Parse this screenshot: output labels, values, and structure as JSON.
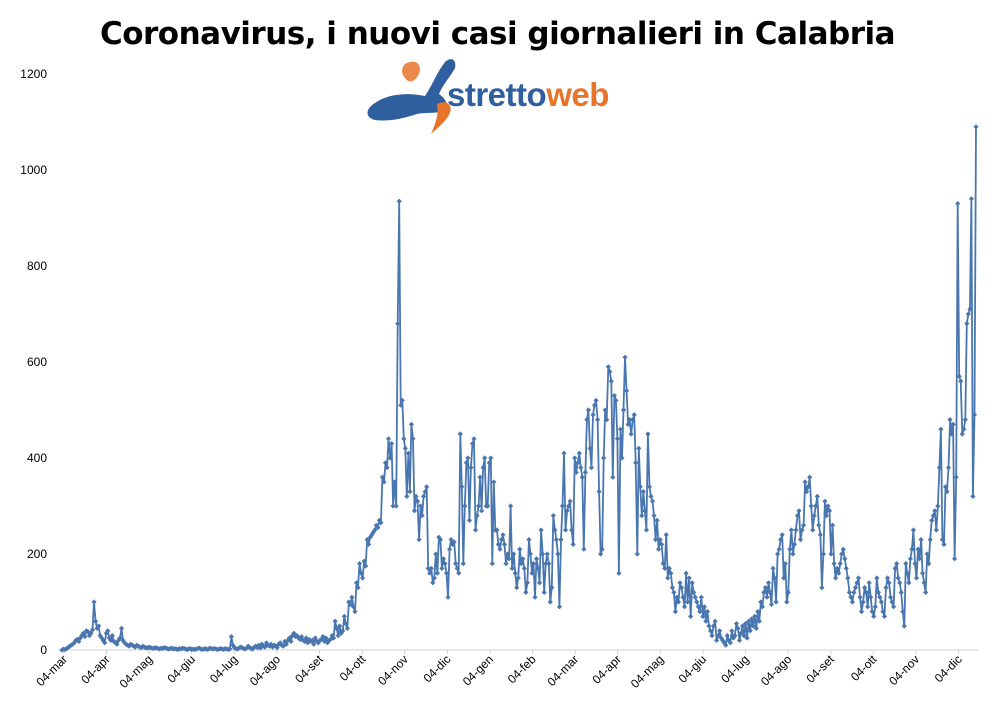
{
  "chart_data": {
    "type": "line",
    "title": "Coronavirus, i nuovi casi giornalieri in Calabria",
    "xlabel": "",
    "ylabel": "",
    "ylim": [
      0,
      1200
    ],
    "yticks": [
      "0",
      "200",
      "400",
      "600",
      "800",
      "1000",
      "1200"
    ],
    "xticks": [
      "04-mar",
      "04-apr",
      "04-mag",
      "04-giu",
      "04-lug",
      "04-ago",
      "04-set",
      "04-ott",
      "04-nov",
      "04-dic",
      "04-gen",
      "04-feb",
      "04-mar",
      "04-apr",
      "04-mag",
      "04-giu",
      "04-lug",
      "04-ago",
      "04-set",
      "04-ott",
      "04-nov",
      "04-dic"
    ],
    "grid": false,
    "legend": "none",
    "line_color": "#4a76b0",
    "series": [
      {
        "values": [
          0,
          2,
          1,
          3,
          5,
          8,
          10,
          12,
          15,
          20,
          22,
          18,
          25,
          30,
          35,
          28,
          40,
          38,
          30,
          35,
          42,
          100,
          60,
          45,
          50,
          30,
          25,
          20,
          15,
          35,
          40,
          25,
          20,
          30,
          18,
          15,
          12,
          20,
          25,
          45,
          20,
          15,
          12,
          10,
          8,
          12,
          10,
          8,
          6,
          10,
          8,
          6,
          5,
          8,
          6,
          5,
          4,
          6,
          5,
          4,
          3,
          5,
          4,
          3,
          2,
          4,
          3,
          5,
          4,
          3,
          2,
          3,
          4,
          2,
          3,
          2,
          1,
          3,
          2,
          4,
          3,
          2,
          1,
          2,
          3,
          1,
          2,
          1,
          2,
          3,
          4,
          2,
          1,
          2,
          3,
          1,
          2,
          4,
          3,
          2,
          3,
          2,
          1,
          2,
          3,
          2,
          1,
          3,
          2,
          1,
          2,
          28,
          10,
          5,
          3,
          2,
          4,
          6,
          5,
          3,
          2,
          4,
          8,
          5,
          3,
          2,
          6,
          8,
          5,
          10,
          4,
          12,
          8,
          6,
          15,
          10,
          8,
          12,
          6,
          10,
          8,
          5,
          12,
          15,
          10,
          8,
          18,
          12,
          20,
          25,
          18,
          30,
          35,
          28,
          30,
          25,
          22,
          28,
          20,
          18,
          25,
          15,
          22,
          18,
          20,
          12,
          25,
          18,
          15,
          20,
          22,
          28,
          18,
          25,
          15,
          20,
          22,
          30,
          25,
          60,
          45,
          30,
          50,
          35,
          40,
          70,
          55,
          45,
          100,
          95,
          110,
          90,
          80,
          140,
          130,
          180,
          160,
          150,
          185,
          175,
          230,
          220,
          235,
          240,
          245,
          250,
          260,
          255,
          270,
          265,
          360,
          350,
          390,
          380,
          440,
          400,
          430,
          300,
          350,
          300,
          680,
          935,
          510,
          520,
          440,
          420,
          320,
          410,
          330,
          470,
          440,
          290,
          320,
          310,
          230,
          300,
          280,
          320,
          330,
          340,
          170,
          160,
          170,
          140,
          150,
          200,
          160,
          235,
          230,
          170,
          190,
          180,
          160,
          110,
          210,
          230,
          220,
          225,
          180,
          170,
          160,
          450,
          340,
          180,
          300,
          390,
          400,
          270,
          380,
          430,
          440,
          250,
          280,
          300,
          360,
          290,
          380,
          400,
          300,
          300,
          390,
          400,
          180,
          350,
          250,
          250,
          220,
          210,
          230,
          240,
          220,
          180,
          200,
          190,
          300,
          170,
          200,
          160,
          130,
          150,
          210,
          180,
          190,
          170,
          120,
          140,
          230,
          200,
          160,
          180,
          110,
          190,
          170,
          140,
          250,
          200,
          120,
          180,
          200,
          180,
          100,
          130,
          280,
          250,
          230,
          200,
          90,
          230,
          300,
          410,
          250,
          290,
          300,
          310,
          250,
          220,
          400,
          370,
          390,
          410,
          380,
          360,
          210,
          370,
          480,
          500,
          420,
          380,
          490,
          510,
          520,
          480,
          330,
          200,
          210,
          400,
          500,
          480,
          590,
          580,
          560,
          360,
          530,
          520,
          440,
          160,
          460,
          400,
          500,
          610,
          540,
          470,
          480,
          450,
          480,
          490,
          390,
          200,
          420,
          340,
          280,
          330,
          290,
          250,
          450,
          340,
          320,
          310,
          280,
          230,
          270,
          210,
          230,
          220,
          180,
          170,
          240,
          150,
          170,
          160,
          130,
          120,
          80,
          110,
          100,
          140,
          130,
          110,
          90,
          160,
          100,
          150,
          70,
          140,
          120,
          110,
          100,
          90,
          80,
          110,
          70,
          90,
          60,
          80,
          50,
          40,
          30,
          50,
          60,
          20,
          30,
          40,
          25,
          20,
          15,
          10,
          30,
          20,
          15,
          40,
          25,
          30,
          55,
          45,
          20,
          35,
          50,
          30,
          55,
          25,
          60,
          40,
          65,
          50,
          70,
          45,
          80,
          60,
          100,
          90,
          120,
          130,
          110,
          140,
          120,
          95,
          170,
          150,
          100,
          200,
          210,
          230,
          240,
          150,
          180,
          100,
          120,
          210,
          250,
          200,
          220,
          250,
          280,
          290,
          230,
          250,
          260,
          350,
          330,
          340,
          360,
          300,
          250,
          280,
          300,
          320,
          260,
          240,
          130,
          200,
          310,
          280,
          300,
          290,
          200,
          260,
          180,
          150,
          170,
          160,
          180,
          200,
          210,
          190,
          170,
          150,
          120,
          110,
          100,
          120,
          130,
          140,
          150,
          110,
          80,
          100,
          130,
          120,
          90,
          140,
          110,
          80,
          70,
          90,
          150,
          120,
          110,
          100,
          80,
          70,
          130,
          150,
          140,
          110,
          100,
          90,
          170,
          180,
          150,
          140,
          120,
          80,
          50,
          180,
          160,
          140,
          190,
          210,
          250,
          180,
          150,
          210,
          190,
          230,
          160,
          140,
          120,
          200,
          180,
          230,
          270,
          280,
          290,
          250,
          300,
          380,
          460,
          230,
          220,
          340,
          330,
          380,
          480,
          450,
          470,
          190,
          360,
          930,
          570,
          560,
          450,
          460,
          480,
          680,
          700,
          710,
          940,
          320,
          490,
          1090
        ]
      }
    ]
  },
  "logo": {
    "part1": "stretto",
    "part2": "web"
  }
}
